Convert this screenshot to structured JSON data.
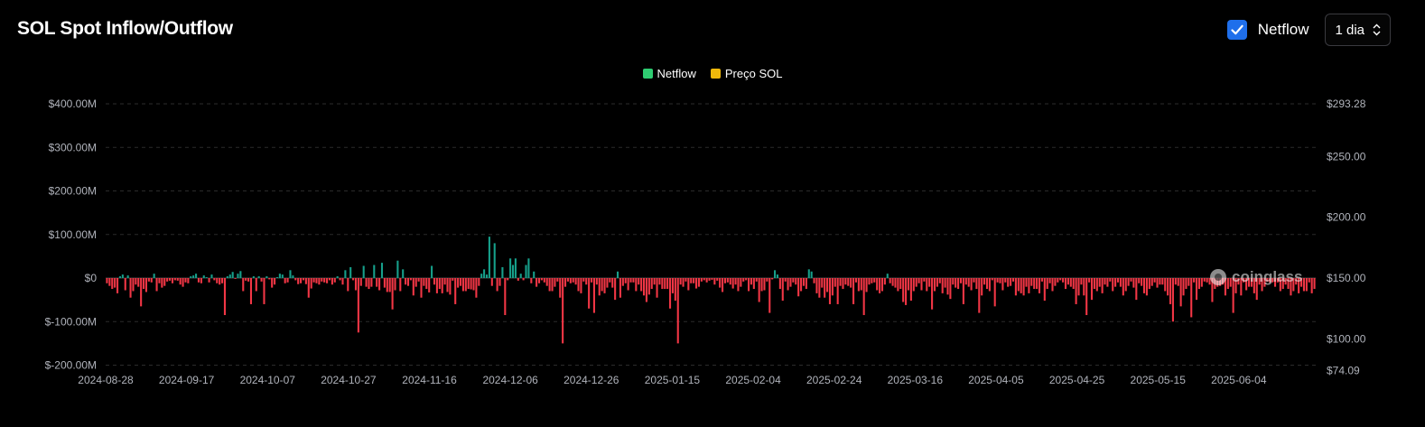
{
  "header": {
    "title": "SOL Spot Inflow/Outflow",
    "netflow_toggle_label": "Netflow",
    "netflow_checked": true,
    "interval_value": "1 dia"
  },
  "colors": {
    "positive": "#16a08b",
    "negative": "#f23645",
    "price": "#e5b13a",
    "legend_netflow": "#2ecc71",
    "legend_price": "#f0b90b"
  },
  "watermark": "coinglass",
  "chart_data": {
    "type": "bar",
    "title": "SOL Spot Inflow/Outflow",
    "legend": [
      "Netflow",
      "Preço SOL"
    ],
    "legend_position": "top-center",
    "grid": true,
    "left_axis": {
      "ticks": [
        "$400.00M",
        "$300.00M",
        "$200.00M",
        "$100.00M",
        "$0",
        "$-100.00M",
        "$-200.00M"
      ],
      "range_millions": [
        -200,
        400
      ]
    },
    "right_axis": {
      "ticks": [
        "$293.28",
        "$250.00",
        "$200.00",
        "$150.00",
        "$100.00",
        "$74.09"
      ],
      "range": [
        74.09,
        293.28
      ]
    },
    "x_ticks": [
      "2024-08-28",
      "2024-09-17",
      "2024-10-07",
      "2024-10-27",
      "2024-11-16",
      "2024-12-06",
      "2024-12-26",
      "2025-01-15",
      "2025-02-04",
      "2025-02-24",
      "2025-03-16",
      "2025-04-05",
      "2025-04-25",
      "2025-05-15",
      "2025-06-04"
    ],
    "x_range": [
      "2024-08-28",
      "2025-06-23"
    ],
    "series": [
      {
        "name": "Netflow",
        "unit": "USD millions",
        "values": [
          -12,
          -18,
          -25,
          -22,
          -35,
          4,
          8,
          -28,
          6,
          -45,
          -30,
          -15,
          -20,
          -65,
          -25,
          -32,
          -8,
          -10,
          10,
          -30,
          -12,
          -22,
          -18,
          -8,
          -6,
          -12,
          -5,
          -6,
          -15,
          -20,
          -10,
          -12,
          4,
          6,
          10,
          -10,
          -12,
          6,
          2,
          -10,
          8,
          -5,
          -12,
          -15,
          -12,
          -85,
          4,
          8,
          14,
          -2,
          10,
          16,
          -30,
          -6,
          -8,
          -60,
          4,
          -30,
          4,
          -8,
          -60,
          4,
          -3,
          -22,
          -15,
          2,
          10,
          8,
          -12,
          -10,
          18,
          6,
          -5,
          -14,
          -12,
          -5,
          -14,
          -45,
          -24,
          -10,
          -12,
          -15,
          -8,
          -10,
          -12,
          -5,
          -15,
          -10,
          4,
          -5,
          -15,
          18,
          -30,
          25,
          -5,
          -28,
          -125,
          -18,
          28,
          -20,
          -25,
          -20,
          30,
          -20,
          -28,
          35,
          -22,
          -32,
          -32,
          -72,
          -28,
          40,
          -30,
          20,
          -15,
          -18,
          -5,
          -40,
          -20,
          -8,
          -45,
          -18,
          -25,
          -33,
          28,
          -15,
          -35,
          -25,
          -35,
          -15,
          -32,
          -38,
          -6,
          -60,
          -22,
          -18,
          -30,
          -30,
          -25,
          -26,
          -28,
          -45,
          -18,
          10,
          20,
          8,
          95,
          -18,
          80,
          -30,
          -18,
          25,
          -85,
          -5,
          45,
          30,
          45,
          -6,
          10,
          -5,
          30,
          45,
          -12,
          15,
          -20,
          -12,
          -5,
          -10,
          -18,
          -30,
          -30,
          -20,
          -8,
          -45,
          -150,
          -20,
          -8,
          -12,
          -10,
          -15,
          -30,
          -35,
          -8,
          -15,
          -70,
          -10,
          -80,
          -15,
          -40,
          -30,
          -35,
          -22,
          -10,
          -22,
          -50,
          15,
          -45,
          -18,
          -12,
          -28,
          -10,
          -10,
          -30,
          -15,
          -30,
          -40,
          -55,
          -38,
          -25,
          -15,
          -45,
          -15,
          -25,
          -25,
          -25,
          -70,
          -35,
          -52,
          -150,
          -15,
          -20,
          -8,
          -28,
          -12,
          -12,
          -24,
          -20,
          -8,
          -5,
          -10,
          -6,
          -4,
          -15,
          -6,
          -22,
          -32,
          -12,
          -10,
          -15,
          -24,
          -15,
          -30,
          -20,
          -8,
          -5,
          -30,
          -15,
          -25,
          -8,
          -55,
          -30,
          -28,
          -8,
          -80,
          -3,
          18,
          8,
          -25,
          -52,
          -8,
          -28,
          -20,
          -10,
          -15,
          -42,
          -30,
          -18,
          -25,
          20,
          15,
          -12,
          -35,
          -45,
          -22,
          -45,
          -32,
          -60,
          -40,
          -20,
          -60,
          -18,
          -25,
          -15,
          -18,
          -22,
          -60,
          -10,
          -30,
          -28,
          -85,
          -32,
          -15,
          -12,
          -10,
          -28,
          -35,
          -30,
          -15,
          10,
          -12,
          -18,
          -22,
          -30,
          -25,
          -55,
          -62,
          -28,
          -52,
          -30,
          -20,
          -12,
          -28,
          -8,
          -30,
          -20,
          -72,
          -30,
          -20,
          -12,
          -35,
          -22,
          -38,
          -48,
          -15,
          -22,
          -25,
          -12,
          -60,
          -15,
          -20,
          -28,
          -10,
          -25,
          -80,
          -40,
          -15,
          -25,
          -30,
          -5,
          -65,
          -10,
          -12,
          -28,
          -10,
          -20,
          -18,
          -8,
          -40,
          -30,
          -35,
          -40,
          -20,
          -35,
          -18,
          -25,
          -25,
          -35,
          -8,
          -52,
          -25,
          -12,
          -30,
          -18,
          -10,
          -5,
          -10,
          -25,
          -15,
          -20,
          -25,
          -60,
          -40,
          -15,
          -40,
          -85,
          -10,
          -50,
          -25,
          -30,
          -20,
          -35,
          -15,
          -20,
          -8,
          -30,
          -20,
          -10,
          -20,
          -40,
          -30,
          -18,
          -8,
          -22,
          -50,
          -12,
          -18,
          -35,
          -40,
          -25,
          -18,
          -10,
          -22,
          -15,
          -15,
          -30,
          -40,
          -60,
          -100,
          -15,
          -18,
          -65,
          -40,
          -25,
          -18,
          -90,
          -10,
          -50,
          -25,
          -20,
          -8,
          -10,
          -15,
          -55,
          -25,
          -20,
          -18,
          -15,
          -40,
          -25,
          -20,
          -80,
          -35,
          -15,
          -40,
          -10,
          -28,
          -20,
          -20,
          -35,
          -50,
          -15,
          -30,
          -20,
          -8,
          -10,
          -10,
          -20,
          -10,
          -30,
          -25,
          -15,
          -25,
          -40,
          -30,
          -15,
          -35,
          -20,
          -30,
          -30,
          -10,
          -35,
          -25
        ]
      },
      {
        "name": "Preço SOL",
        "unit": "USD",
        "values": []
      }
    ]
  }
}
